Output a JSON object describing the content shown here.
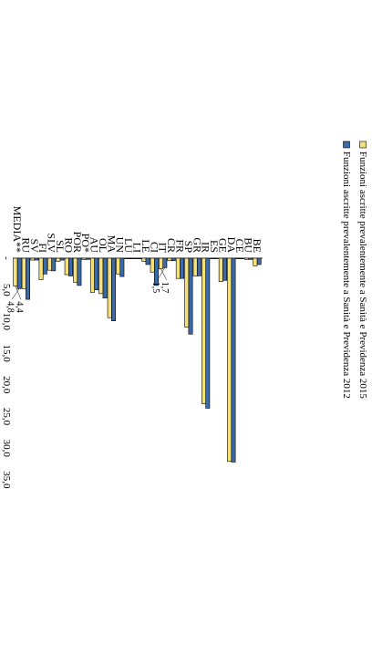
{
  "chart_data": {
    "type": "bar",
    "orientation": "horizontal",
    "value_axis": {
      "min": 0,
      "max": 35,
      "tick_step": 5,
      "tick_labels": [
        "-",
        "5,0",
        "10,0",
        "15,0",
        "20,0",
        "25,0",
        "30,0",
        "35,0"
      ]
    },
    "categories": [
      "BE",
      "BU",
      "CE",
      "DA",
      "GE",
      "ES",
      "IR",
      "GR",
      "SP",
      "FR",
      "CR",
      "IT",
      "CI",
      "LE",
      "LI",
      "LU",
      "UN",
      "MA",
      "OL",
      "AU",
      "PO*",
      "POR",
      "RO",
      "SL",
      "SLV",
      "FI",
      "SV",
      "RU",
      "MEDIA**"
    ],
    "series": [
      {
        "name": "Funzioni ascritte prevalentemente a Sanità e Previdenza 2012",
        "color": "#3a6aa8",
        "values": [
          1.0,
          0.2,
          0.1,
          32.2,
          3.5,
          0.0,
          23.7,
          2.8,
          12.0,
          3.2,
          0.4,
          1.5,
          4.3,
          1.0,
          0.1,
          0.1,
          2.9,
          9.9,
          6.3,
          5.0,
          0.2,
          4.3,
          2.8,
          0.3,
          2.0,
          2.5,
          0.3,
          6.5,
          4.8
        ]
      },
      {
        "name": "Funzioni ascritte prevalentemente a Sanità e Previdenza 2015",
        "color": "#f5e07a",
        "values": [
          1.2,
          0.2,
          0.1,
          32.1,
          3.7,
          0.0,
          23.0,
          2.8,
          10.9,
          3.2,
          0.4,
          1.7,
          2.2,
          0.5,
          0.1,
          0.1,
          2.5,
          9.4,
          5.6,
          5.4,
          0.2,
          3.8,
          2.6,
          0.5,
          1.9,
          3.4,
          0.3,
          4.8,
          4.4
        ]
      }
    ],
    "data_labels": [
      {
        "category": "IT",
        "text_2012": "1,5",
        "text_2015": "1,7"
      },
      {
        "category": "MEDIA**",
        "text_2012": "4,8",
        "text_2015": "4,4"
      }
    ],
    "legend_position": "bottom"
  }
}
